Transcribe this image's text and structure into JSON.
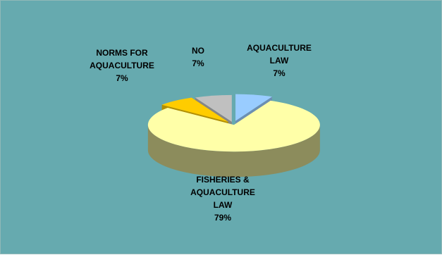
{
  "chart_data": {
    "type": "pie",
    "title": "",
    "slices": [
      {
        "name": "AQUACULTURE LAW",
        "value": 7,
        "label": "7%",
        "color": "#99ccff"
      },
      {
        "name": "FISHERIES & AQUACULTURE LAW",
        "value": 79,
        "label": "79%",
        "color": "#ffffa8"
      },
      {
        "name": "NORMS FOR AQUACULTURE",
        "value": 7,
        "label": "7%",
        "color": "#ffcc00"
      },
      {
        "name": "NO",
        "value": 7,
        "label": "7%",
        "color": "#c0c0c0"
      }
    ],
    "three_d": true,
    "legend": "none"
  },
  "background_color": "#66aaaf",
  "labels": {
    "aquaculture_law": {
      "line1": "AQUACULTURE",
      "line2": "LAW",
      "pct": "7%"
    },
    "fisheries": {
      "line1": "FISHERIES &",
      "line2": "AQUACULTURE",
      "line3": "LAW",
      "pct": "79%"
    },
    "norms": {
      "line1": "NORMS FOR",
      "line2": "AQUACULTURE",
      "pct": "7%"
    },
    "no": {
      "line1": "NO",
      "pct": "7%"
    }
  }
}
